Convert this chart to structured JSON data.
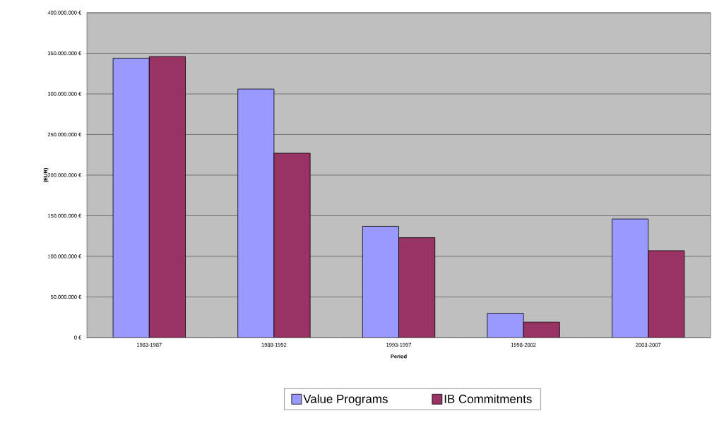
{
  "chart_data": {
    "type": "bar",
    "xlabel": "Period",
    "ylabel": "(EUR)",
    "categories": [
      "1983-1987",
      "1988-1992",
      "1993-1997",
      "1998-2002",
      "2003-2007"
    ],
    "series": [
      {
        "name": "Value Programs",
        "color": "#9999ff",
        "values": [
          344000000,
          306000000,
          137000000,
          30000000,
          146000000
        ]
      },
      {
        "name": "IB Commitments",
        "color": "#993366",
        "values": [
          346000000,
          227000000,
          123000000,
          19000000,
          107000000
        ]
      }
    ],
    "ylim": [
      0,
      400000000
    ],
    "yticks": [
      {
        "value": 0,
        "label": "0 €"
      },
      {
        "value": 50000000,
        "label": "50.000.000 €"
      },
      {
        "value": 100000000,
        "label": "100.000.000 €"
      },
      {
        "value": 150000000,
        "label": "150.000.000 €"
      },
      {
        "value": 200000000,
        "label": "200.000.000 €"
      },
      {
        "value": 250000000,
        "label": "250.000.000 €"
      },
      {
        "value": 300000000,
        "label": "300.000.000 €"
      },
      {
        "value": 350000000,
        "label": "350.000.000 €"
      },
      {
        "value": 400000000,
        "label": "400.000.000 €"
      }
    ],
    "grid": "y",
    "legend": "bottom"
  }
}
